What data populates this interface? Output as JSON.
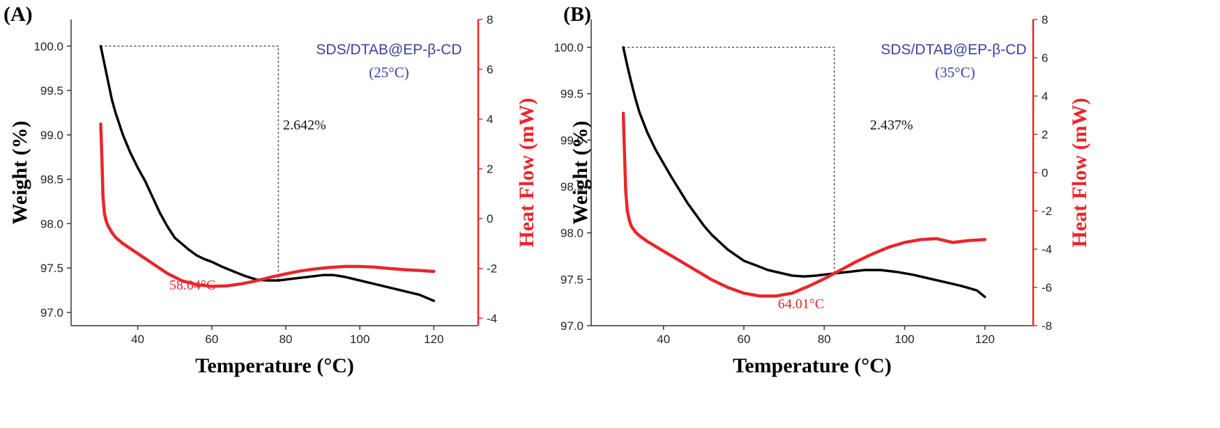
{
  "chart_data": [
    {
      "type": "line",
      "panel_label": "(A)",
      "xlabel": "Temperature (°C)",
      "ylabel_left": "Weight (%)",
      "ylabel_right": "Heat Flow (mW)",
      "xlim": [
        22,
        132
      ],
      "x_ticks": [
        40,
        60,
        80,
        100,
        120
      ],
      "ylim_left": [
        96.85,
        100.3
      ],
      "y_ticks_left": [
        "97.0",
        "97.5",
        "98.0",
        "98.5",
        "99.0",
        "99.5",
        "100.0"
      ],
      "ylim_right": [
        -4.3,
        8.0
      ],
      "y_ticks_right": [
        "-4",
        "-2",
        "0",
        "2",
        "4",
        "6",
        "8"
      ],
      "sample_label": "SDS/DTAB@EP-β-CD",
      "sample_temp": "(25°C)",
      "weight_loss_label": "2.642%",
      "peak_label": "58.04°C",
      "marker_box": {
        "x_start": 30,
        "x_end": 78,
        "weight_top": 100.0,
        "weight_bottom": 97.36
      },
      "series": [
        {
          "axis": "left",
          "color": "#000000",
          "x": [
            30,
            31,
            32,
            33,
            34,
            36,
            38,
            40,
            42,
            44,
            46,
            48,
            50,
            52,
            54,
            56,
            58,
            60,
            63,
            66,
            69,
            72,
            75,
            78,
            82,
            86,
            90,
            93,
            96,
            100,
            104,
            108,
            112,
            116,
            120
          ],
          "y": [
            100.0,
            99.8,
            99.6,
            99.4,
            99.25,
            99.0,
            98.8,
            98.63,
            98.48,
            98.3,
            98.12,
            97.97,
            97.84,
            97.77,
            97.7,
            97.64,
            97.6,
            97.57,
            97.51,
            97.46,
            97.41,
            97.37,
            97.36,
            97.36,
            97.38,
            97.4,
            97.42,
            97.42,
            97.4,
            97.36,
            97.32,
            97.28,
            97.24,
            97.2,
            97.13
          ]
        },
        {
          "axis": "right",
          "color": "#e8262b",
          "x": [
            30,
            30.3,
            30.6,
            31,
            31.5,
            32,
            33,
            34,
            36,
            38,
            40,
            44,
            48,
            52,
            56,
            60,
            64,
            68,
            72,
            76,
            80,
            84,
            88,
            92,
            96,
            100,
            104,
            108,
            112,
            116,
            120
          ],
          "y": [
            3.8,
            2.5,
            0.9,
            0.2,
            -0.1,
            -0.3,
            -0.55,
            -0.75,
            -1.0,
            -1.2,
            -1.4,
            -1.8,
            -2.2,
            -2.5,
            -2.65,
            -2.72,
            -2.7,
            -2.62,
            -2.5,
            -2.35,
            -2.22,
            -2.1,
            -2.02,
            -1.96,
            -1.92,
            -1.92,
            -1.95,
            -2.0,
            -2.05,
            -2.08,
            -2.12
          ]
        }
      ]
    },
    {
      "type": "line",
      "panel_label": "(B)",
      "xlabel": "Temperature (°C)",
      "ylabel_left": "Weight (%)",
      "ylabel_right": "Heat Flow (mW)",
      "xlim": [
        22,
        132
      ],
      "x_ticks": [
        40,
        60,
        80,
        100,
        120
      ],
      "ylim_left": [
        97.0,
        100.3
      ],
      "y_ticks_left": [
        "97.0",
        "97.5",
        "98.0",
        "98.5",
        "99.0",
        "99.5",
        "100.0"
      ],
      "ylim_right": [
        -8.0,
        8.0
      ],
      "y_ticks_right": [
        "-8",
        "-6",
        "-4",
        "-2",
        "0",
        "2",
        "4",
        "6",
        "8"
      ],
      "sample_label": "SDS/DTAB@EP-β-CD",
      "sample_temp": "(35°C)",
      "weight_loss_label": "2.437%",
      "peak_label": "64.01°C",
      "marker_box": {
        "x_start": 30,
        "x_end": 82.5,
        "weight_top": 100.0,
        "weight_bottom": 97.56
      },
      "series": [
        {
          "axis": "left",
          "color": "#000000",
          "x": [
            30,
            31,
            32,
            33,
            34,
            36,
            38,
            40,
            42,
            44,
            46,
            48,
            50,
            52,
            54,
            56,
            58,
            60,
            63,
            66,
            69,
            72,
            75,
            78,
            82,
            86,
            90,
            94,
            98,
            102,
            106,
            110,
            114,
            118,
            120
          ],
          "y": [
            100.0,
            99.8,
            99.62,
            99.45,
            99.3,
            99.08,
            98.9,
            98.75,
            98.6,
            98.46,
            98.32,
            98.2,
            98.08,
            97.98,
            97.9,
            97.82,
            97.76,
            97.7,
            97.65,
            97.6,
            97.57,
            97.54,
            97.53,
            97.54,
            97.56,
            97.58,
            97.6,
            97.6,
            97.58,
            97.55,
            97.51,
            97.47,
            97.43,
            97.38,
            97.31
          ]
        },
        {
          "axis": "right",
          "color": "#e8262b",
          "x": [
            30,
            30.3,
            30.6,
            31,
            31.5,
            32,
            33,
            34,
            36,
            38,
            40,
            44,
            48,
            52,
            56,
            60,
            64,
            68,
            72,
            76,
            80,
            84,
            88,
            92,
            96,
            100,
            104,
            108,
            112,
            116,
            120
          ],
          "y": [
            3.1,
            1.0,
            -1.0,
            -2.0,
            -2.5,
            -2.8,
            -3.1,
            -3.3,
            -3.6,
            -3.85,
            -4.1,
            -4.6,
            -5.1,
            -5.6,
            -6.0,
            -6.3,
            -6.45,
            -6.45,
            -6.3,
            -5.95,
            -5.55,
            -5.1,
            -4.65,
            -4.25,
            -3.9,
            -3.65,
            -3.5,
            -3.45,
            -3.65,
            -3.55,
            -3.5
          ]
        }
      ]
    }
  ]
}
